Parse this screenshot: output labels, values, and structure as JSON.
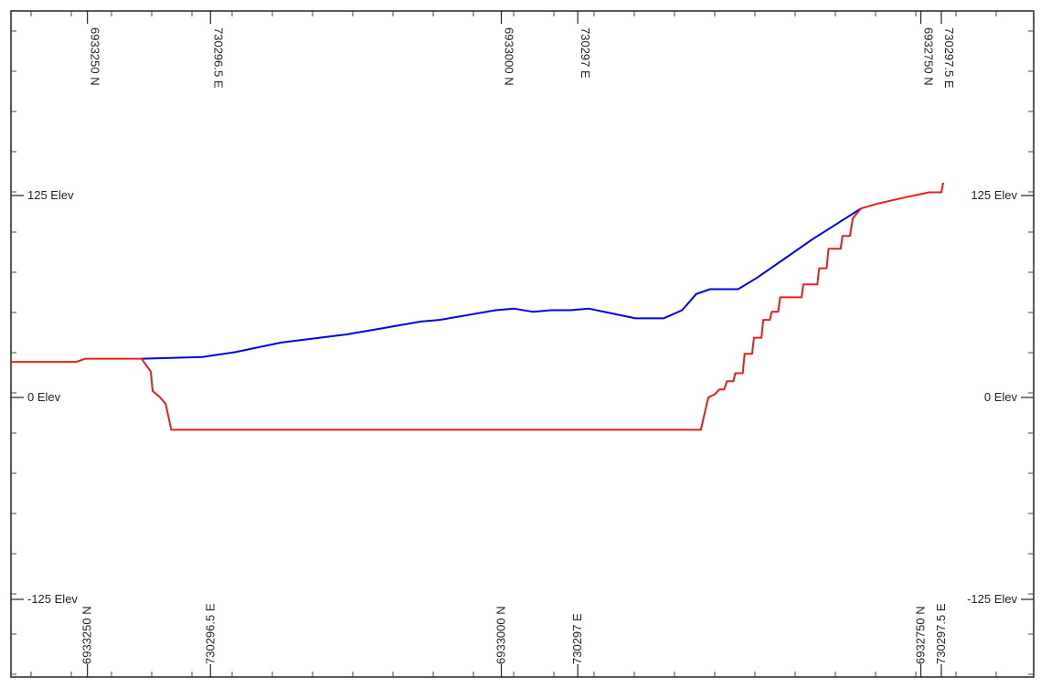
{
  "chart_data": {
    "type": "line",
    "elevation_ticks": [
      {
        "value": 125,
        "label": "125 Elev"
      },
      {
        "value": 0,
        "label": "0 Elev"
      },
      {
        "value": -125,
        "label": "-125 Elev"
      }
    ],
    "distance_markers": [
      {
        "at": 0.082,
        "label": "6933250 N"
      },
      {
        "at": 0.214,
        "label": "730296.5 E"
      },
      {
        "at": 0.526,
        "label": "6933000 N"
      },
      {
        "at": 0.608,
        "label": "730297 E"
      },
      {
        "at": 0.976,
        "label": "6932750 N"
      },
      {
        "at": 0.998,
        "label": "730297.5 E"
      }
    ],
    "xlim": [
      0,
      1
    ],
    "ylim": [
      -167,
      245
    ],
    "grid": false,
    "series": [
      {
        "color": "#0000e6",
        "points": [
          [
            0.14,
            24
          ],
          [
            0.205,
            25
          ],
          [
            0.24,
            28
          ],
          [
            0.29,
            34
          ],
          [
            0.36,
            39
          ],
          [
            0.4,
            43
          ],
          [
            0.44,
            47
          ],
          [
            0.46,
            48
          ],
          [
            0.49,
            51
          ],
          [
            0.52,
            54
          ],
          [
            0.54,
            55
          ],
          [
            0.56,
            53
          ],
          [
            0.58,
            54
          ],
          [
            0.6,
            54
          ],
          [
            0.62,
            55
          ],
          [
            0.645,
            52
          ],
          [
            0.67,
            49
          ],
          [
            0.7,
            49
          ],
          [
            0.72,
            54
          ],
          [
            0.735,
            64
          ],
          [
            0.75,
            67
          ],
          [
            0.78,
            67
          ],
          [
            0.8,
            74
          ],
          [
            0.83,
            86
          ],
          [
            0.86,
            98
          ],
          [
            0.89,
            109
          ],
          [
            0.912,
            117
          ]
        ]
      },
      {
        "color": "#e61e1e",
        "points": [
          [
            0.0,
            22
          ],
          [
            0.07,
            22
          ],
          [
            0.08,
            24
          ],
          [
            0.14,
            24
          ],
          [
            0.15,
            16
          ],
          [
            0.152,
            4
          ],
          [
            0.16,
            0
          ],
          [
            0.166,
            -4
          ],
          [
            0.172,
            -20
          ],
          [
            0.74,
            -20
          ],
          [
            0.748,
            0
          ],
          [
            0.755,
            2
          ],
          [
            0.76,
            5
          ],
          [
            0.765,
            5
          ],
          [
            0.768,
            10
          ],
          [
            0.775,
            10
          ],
          [
            0.777,
            15
          ],
          [
            0.785,
            15
          ],
          [
            0.787,
            27
          ],
          [
            0.795,
            27
          ],
          [
            0.797,
            37
          ],
          [
            0.805,
            37
          ],
          [
            0.807,
            48
          ],
          [
            0.814,
            48
          ],
          [
            0.816,
            53
          ],
          [
            0.823,
            53
          ],
          [
            0.825,
            62
          ],
          [
            0.848,
            62
          ],
          [
            0.85,
            70
          ],
          [
            0.865,
            70
          ],
          [
            0.867,
            80
          ],
          [
            0.875,
            80
          ],
          [
            0.877,
            92
          ],
          [
            0.89,
            92
          ],
          [
            0.892,
            100
          ],
          [
            0.9,
            100
          ],
          [
            0.903,
            111
          ],
          [
            0.912,
            117
          ],
          [
            0.93,
            120
          ],
          [
            0.96,
            124
          ],
          [
            0.985,
            127
          ],
          [
            0.998,
            127
          ],
          [
            1.0,
            133
          ]
        ]
      }
    ]
  }
}
